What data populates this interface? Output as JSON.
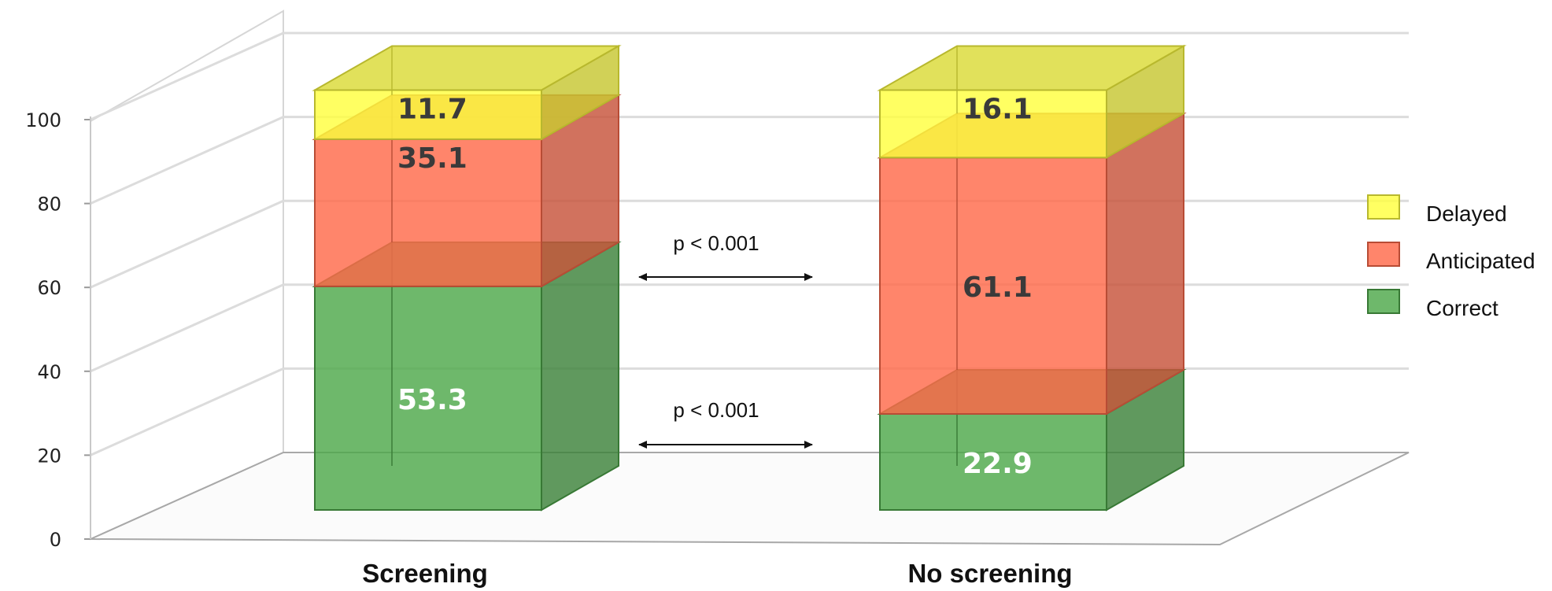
{
  "chart_data": {
    "type": "bar",
    "stacked": true,
    "three_d": true,
    "categories": [
      "Screening",
      "No screening"
    ],
    "series": [
      {
        "name": "Correct",
        "values": [
          53.3,
          22.9
        ],
        "color": "#4ea84a"
      },
      {
        "name": "Anticipated",
        "values": [
          35.1,
          61.1
        ],
        "color": "#ff6a4a"
      },
      {
        "name": "Delayed",
        "values": [
          11.7,
          16.1
        ],
        "color": "#ffff40"
      }
    ],
    "data_labels": [
      [
        "53.3",
        "22.9"
      ],
      [
        "35.1",
        "61.1"
      ],
      [
        "11.7",
        "16.1"
      ]
    ],
    "yticks": [
      "0",
      "20",
      "40",
      "60",
      "80",
      "100"
    ],
    "ylim": [
      0,
      100
    ],
    "grid": true,
    "legend": "right",
    "annotations": [
      {
        "text": "p < 0.001",
        "between": "Correct"
      },
      {
        "text": "p < 0.001",
        "between": "Anticipated"
      }
    ],
    "title": "",
    "xlabel": "",
    "ylabel": ""
  }
}
